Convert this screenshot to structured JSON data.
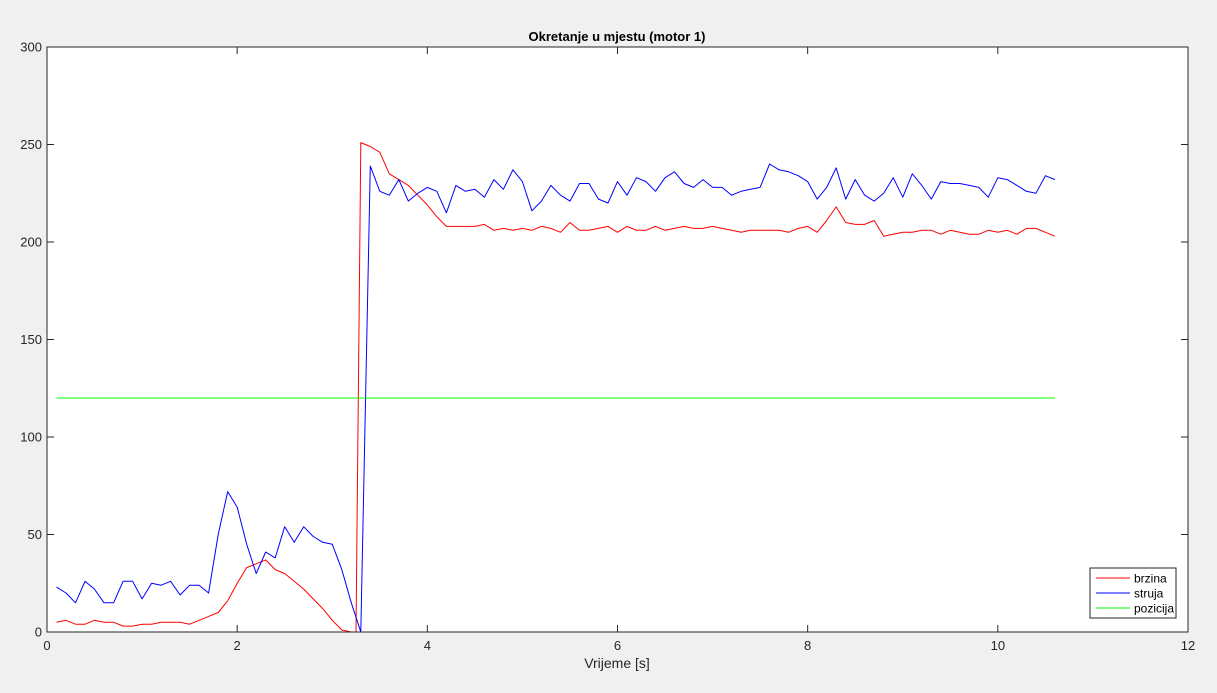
{
  "chart_data": {
    "type": "line",
    "title": "Okretanje u mjestu (motor 1)",
    "xlabel": "Vrijeme [s]",
    "ylabel": "",
    "xlim": [
      0,
      12
    ],
    "ylim": [
      0,
      300
    ],
    "xticks": [
      0,
      2,
      4,
      6,
      8,
      10,
      12
    ],
    "yticks": [
      0,
      50,
      100,
      150,
      200,
      250,
      300
    ],
    "xtick_labels": [
      "0",
      "2",
      "4",
      "6",
      "8",
      "10",
      "12"
    ],
    "ytick_labels": [
      "0",
      "50",
      "100",
      "150",
      "200",
      "250",
      "300"
    ],
    "grid": false,
    "legend_position": "bottom-right",
    "series": [
      {
        "name": "brzina",
        "color": "#ff0000",
        "x": [
          0.1,
          0.2,
          0.3,
          0.4,
          0.5,
          0.6,
          0.7,
          0.8,
          0.9,
          1.0,
          1.1,
          1.2,
          1.3,
          1.4,
          1.5,
          1.6,
          1.7,
          1.8,
          1.9,
          2.0,
          2.1,
          2.2,
          2.3,
          2.4,
          2.5,
          2.6,
          2.7,
          2.8,
          2.9,
          3.0,
          3.1,
          3.2,
          3.25,
          3.3,
          3.4,
          3.5,
          3.6,
          3.7,
          3.8,
          3.9,
          4.0,
          4.1,
          4.2,
          4.3,
          4.4,
          4.5,
          4.6,
          4.7,
          4.8,
          4.9,
          5.0,
          5.1,
          5.2,
          5.3,
          5.4,
          5.5,
          5.6,
          5.7,
          5.8,
          5.9,
          6.0,
          6.1,
          6.2,
          6.3,
          6.4,
          6.5,
          6.6,
          6.7,
          6.8,
          6.9,
          7.0,
          7.1,
          7.2,
          7.3,
          7.4,
          7.5,
          7.6,
          7.7,
          7.8,
          7.9,
          8.0,
          8.1,
          8.2,
          8.3,
          8.4,
          8.5,
          8.6,
          8.7,
          8.8,
          8.9,
          9.0,
          9.1,
          9.2,
          9.3,
          9.4,
          9.5,
          9.6,
          9.7,
          9.8,
          9.9,
          10.0,
          10.1,
          10.2,
          10.3,
          10.4,
          10.5,
          10.6
        ],
        "y": [
          5,
          6,
          4,
          4,
          6,
          5,
          5,
          3,
          3,
          4,
          4,
          5,
          5,
          5,
          4,
          6,
          8,
          10,
          16,
          25,
          33,
          35,
          37,
          32,
          30,
          26,
          22,
          17,
          12,
          6,
          1,
          0,
          0,
          251,
          249,
          246,
          235,
          232,
          229,
          224,
          219,
          213,
          208,
          208,
          208,
          208,
          209,
          206,
          207,
          206,
          207,
          206,
          208,
          207,
          205,
          210,
          206,
          206,
          207,
          208,
          205,
          208,
          206,
          206,
          208,
          206,
          207,
          208,
          207,
          207,
          208,
          207,
          206,
          205,
          206,
          206,
          206,
          206,
          205,
          207,
          208,
          205,
          211,
          218,
          210,
          209,
          209,
          211,
          203,
          204,
          205,
          205,
          206,
          206,
          204,
          206,
          205,
          204,
          204,
          206,
          205,
          206,
          204,
          207,
          207,
          205,
          203
        ]
      },
      {
        "name": "struja",
        "color": "#0000ff",
        "x": [
          0.1,
          0.2,
          0.3,
          0.4,
          0.5,
          0.6,
          0.7,
          0.8,
          0.9,
          1.0,
          1.1,
          1.2,
          1.3,
          1.4,
          1.5,
          1.6,
          1.7,
          1.8,
          1.9,
          2.0,
          2.1,
          2.2,
          2.3,
          2.4,
          2.5,
          2.6,
          2.7,
          2.8,
          2.9,
          3.0,
          3.1,
          3.2,
          3.3,
          3.4,
          3.5,
          3.6,
          3.7,
          3.8,
          3.9,
          4.0,
          4.1,
          4.2,
          4.3,
          4.4,
          4.5,
          4.6,
          4.7,
          4.8,
          4.9,
          5.0,
          5.1,
          5.2,
          5.3,
          5.4,
          5.5,
          5.6,
          5.7,
          5.8,
          5.9,
          6.0,
          6.1,
          6.2,
          6.3,
          6.4,
          6.5,
          6.6,
          6.7,
          6.8,
          6.9,
          7.0,
          7.1,
          7.2,
          7.3,
          7.4,
          7.5,
          7.6,
          7.7,
          7.8,
          7.9,
          8.0,
          8.1,
          8.2,
          8.3,
          8.4,
          8.5,
          8.6,
          8.7,
          8.8,
          8.9,
          9.0,
          9.1,
          9.2,
          9.3,
          9.4,
          9.5,
          9.6,
          9.7,
          9.8,
          9.9,
          10.0,
          10.1,
          10.2,
          10.3,
          10.4,
          10.5,
          10.6
        ],
        "y": [
          23,
          20,
          15,
          26,
          22,
          15,
          15,
          26,
          26,
          17,
          25,
          24,
          26,
          19,
          24,
          24,
          20,
          50,
          72,
          64,
          45,
          30,
          41,
          38,
          54,
          46,
          54,
          49,
          46,
          45,
          32,
          15,
          0,
          239,
          226,
          224,
          232,
          221,
          225,
          228,
          226,
          215,
          229,
          226,
          227,
          223,
          232,
          227,
          237,
          231,
          216,
          221,
          229,
          224,
          221,
          230,
          230,
          222,
          220,
          231,
          224,
          233,
          231,
          226,
          233,
          236,
          230,
          228,
          232,
          228,
          228,
          224,
          226,
          227,
          228,
          240,
          237,
          236,
          234,
          231,
          222,
          228,
          238,
          222,
          232,
          224,
          221,
          225,
          233,
          223,
          235,
          229,
          222,
          231,
          230,
          230,
          229,
          228,
          223,
          233,
          232,
          229,
          226,
          225,
          234,
          232
        ]
      },
      {
        "name": "pozicija",
        "color": "#00ff00",
        "x": [
          0.1,
          10.6
        ],
        "y": [
          120,
          120
        ]
      }
    ]
  }
}
